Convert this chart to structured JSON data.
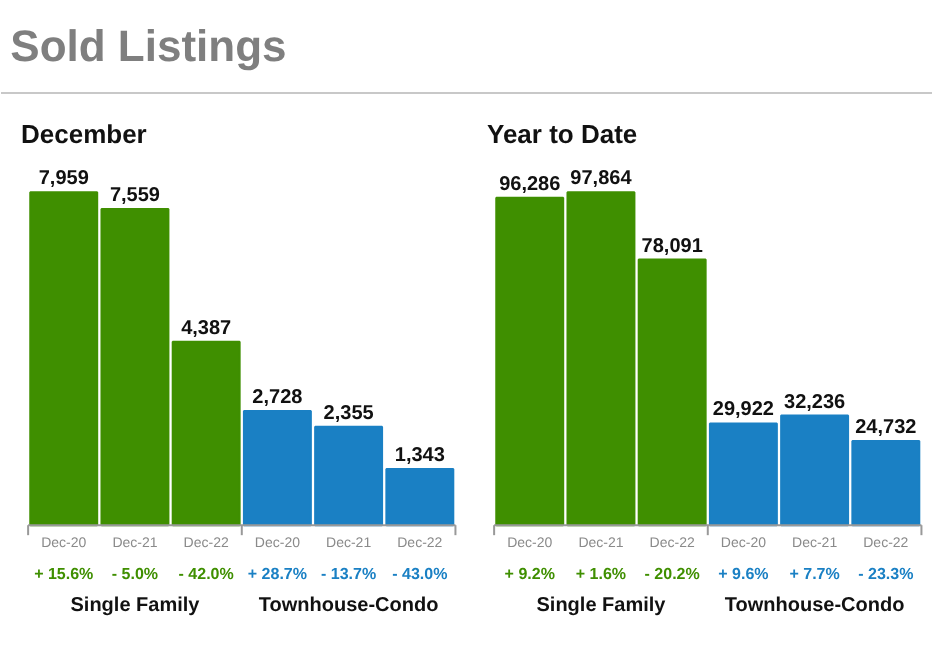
{
  "chart_data": [
    {
      "type": "other",
      "title": "Sold Listings"
    },
    {
      "type": "bar",
      "title": "December",
      "categories": [
        "Dec-20",
        "Dec-21",
        "Dec-22",
        "Dec-20",
        "Dec-21",
        "Dec-22"
      ],
      "values": [
        7959,
        7559,
        4387,
        2728,
        2355,
        1343
      ],
      "colors": [
        "#3f8f00",
        "#3f8f00",
        "#3f8f00",
        "#1a80c4",
        "#1a80c4",
        "#1a80c4"
      ],
      "value_labels": [
        "7,959",
        "7,559",
        "4,387",
        "2,728",
        "2,355",
        "1,343"
      ],
      "annotations": [
        "+ 15.6%",
        "- 5.0%",
        "- 42.0%",
        "+ 28.7%",
        "- 13.7%",
        "- 43.0%",
        "Single Family",
        "Townhouse-Condo"
      ]
    },
    {
      "type": "bar",
      "title": "Year to Date",
      "categories": [
        "Dec-20",
        "Dec-21",
        "Dec-22",
        "Dec-20",
        "Dec-21",
        "Dec-22"
      ],
      "values": [
        96286,
        97864,
        78091,
        29922,
        32236,
        24732
      ],
      "colors": [
        "#3f8f00",
        "#3f8f00",
        "#3f8f00",
        "#1a80c4",
        "#1a80c4",
        "#1a80c4"
      ],
      "value_labels": [
        "96,286",
        "97,864",
        "78,091",
        "29,922",
        "32,236",
        "24,732"
      ],
      "annotations": [
        "+ 9.2%",
        "+ 1.6%",
        "- 20.2%",
        "+ 9.6%",
        "+ 7.7%",
        "- 23.3%",
        "Single Family",
        "Townhouse-Condo"
      ]
    }
  ]
}
